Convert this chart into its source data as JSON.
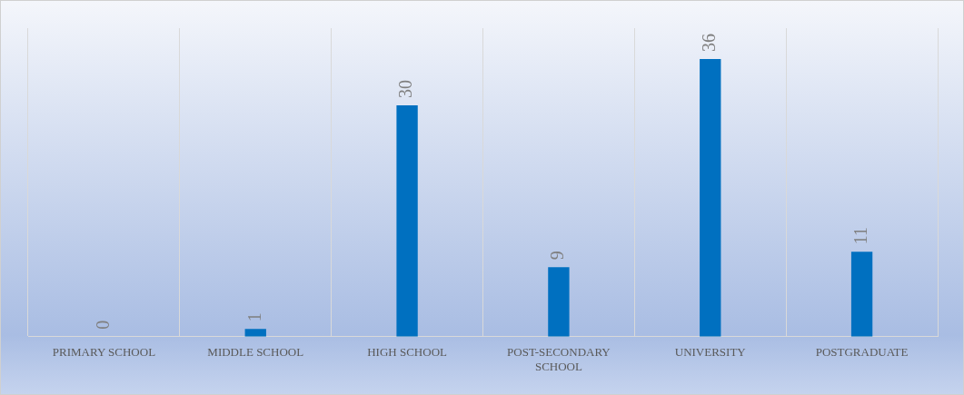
{
  "chart_data": {
    "type": "bar",
    "categories": [
      "PRIMARY SCHOOL",
      "MIDDLE SCHOOL",
      "HIGH SCHOOL",
      "POST-SECONDARY SCHOOL",
      "UNIVERSITY",
      "POSTGRADUATE"
    ],
    "values": [
      0,
      1,
      30,
      9,
      36,
      11
    ],
    "color": "#0070c0",
    "ylim": [
      0,
      40
    ],
    "data_labels": true,
    "grid": "x",
    "tick_labels": "x",
    "legend": false
  }
}
